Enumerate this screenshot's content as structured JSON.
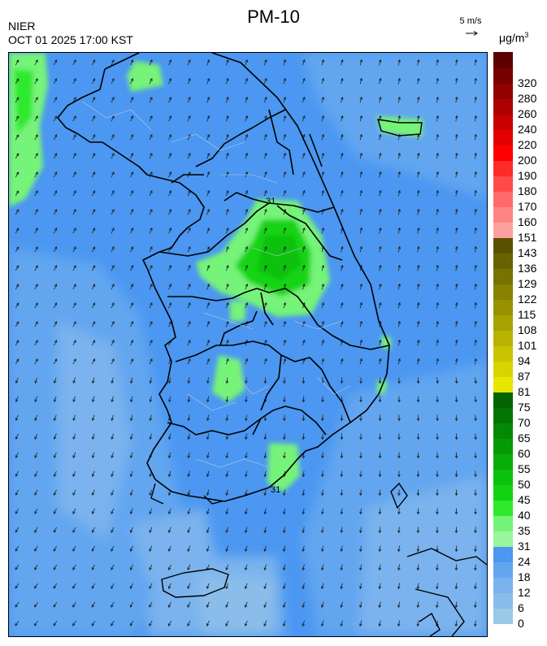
{
  "header": {
    "title": "PM-10",
    "agency": "NIER",
    "timestamp": "OCT 01 2025 17:00 KST",
    "wind_reference": "5 m/s",
    "unit_base": "μg/m",
    "unit_exponent": "3"
  },
  "map_labels": {
    "contour_a": "31",
    "contour_b": "31"
  },
  "colorbar": {
    "bins": [
      {
        "label": "0",
        "color": "#99c9e4"
      },
      {
        "label": "6",
        "color": "#8abdea"
      },
      {
        "label": "12",
        "color": "#7ab3ee"
      },
      {
        "label": "18",
        "color": "#62a6f0"
      },
      {
        "label": "24",
        "color": "#4b97f1"
      },
      {
        "label": "31",
        "color": "#97f79a"
      },
      {
        "label": "35",
        "color": "#76f379"
      },
      {
        "label": "40",
        "color": "#2ee92e"
      },
      {
        "label": "45",
        "color": "#12d312"
      },
      {
        "label": "50",
        "color": "#0cc10c"
      },
      {
        "label": "55",
        "color": "#08ad08"
      },
      {
        "label": "60",
        "color": "#069a06"
      },
      {
        "label": "65",
        "color": "#058805"
      },
      {
        "label": "70",
        "color": "#037503"
      },
      {
        "label": "75",
        "color": "#026402"
      },
      {
        "label": "81",
        "color": "#e6e600"
      },
      {
        "label": "87",
        "color": "#d8d400"
      },
      {
        "label": "94",
        "color": "#c9c400"
      },
      {
        "label": "101",
        "color": "#b8b300"
      },
      {
        "label": "108",
        "color": "#a8a300"
      },
      {
        "label": "115",
        "color": "#989200"
      },
      {
        "label": "122",
        "color": "#878200"
      },
      {
        "label": "129",
        "color": "#787200"
      },
      {
        "label": "136",
        "color": "#686200"
      },
      {
        "label": "143",
        "color": "#585200"
      },
      {
        "label": "151",
        "color": "#ffa0a0"
      },
      {
        "label": "160",
        "color": "#ff8585"
      },
      {
        "label": "170",
        "color": "#ff6a6a"
      },
      {
        "label": "180",
        "color": "#ff4a4a"
      },
      {
        "label": "190",
        "color": "#ff2a2a"
      },
      {
        "label": "200",
        "color": "#ff0000"
      },
      {
        "label": "220",
        "color": "#e40000"
      },
      {
        "label": "240",
        "color": "#c80000"
      },
      {
        "label": "260",
        "color": "#ad0000"
      },
      {
        "label": "280",
        "color": "#920000"
      },
      {
        "label": "320",
        "color": "#770000"
      },
      {
        "label": "",
        "color": "#5e0000"
      }
    ]
  }
}
